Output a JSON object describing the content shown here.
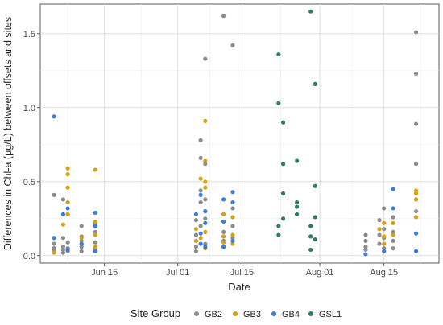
{
  "chart_data": {
    "type": "scatter",
    "title": "",
    "xlabel": "Date",
    "ylabel": "Differences in Chl-a (μg/L) between offsets and sites",
    "x_axis": {
      "type": "date",
      "range": [
        "2019-06-01",
        "2019-08-27"
      ],
      "ticks": [
        {
          "value": "2019-06-15",
          "label": "Jun 15"
        },
        {
          "value": "2019-07-01",
          "label": "Jul 01"
        },
        {
          "value": "2019-07-15",
          "label": "Jul 15"
        },
        {
          "value": "2019-08-01",
          "label": "Aug 01"
        },
        {
          "value": "2019-08-15",
          "label": "Aug 15"
        }
      ]
    },
    "y_axis": {
      "range": [
        -0.05,
        1.7
      ],
      "ticks": [
        {
          "value": 0.0,
          "label": "0.0"
        },
        {
          "value": 0.5,
          "label": "0.5"
        },
        {
          "value": 1.0,
          "label": "1.0"
        },
        {
          "value": 1.5,
          "label": "1.5"
        }
      ]
    },
    "grid": true,
    "legend": {
      "title": "Site Group",
      "position": "bottom"
    },
    "series": [
      {
        "name": "GB2",
        "color": "#8c8c8c",
        "points": [
          [
            "2019-06-04",
            0.41
          ],
          [
            "2019-06-04",
            0.08
          ],
          [
            "2019-06-04",
            0.05
          ],
          [
            "2019-06-04",
            0.03
          ],
          [
            "2019-06-06",
            0.38
          ],
          [
            "2019-06-06",
            0.12
          ],
          [
            "2019-06-06",
            0.06
          ],
          [
            "2019-06-06",
            0.04
          ],
          [
            "2019-06-06",
            0.02
          ],
          [
            "2019-06-07",
            0.09
          ],
          [
            "2019-06-07",
            0.05
          ],
          [
            "2019-06-07",
            0.03
          ],
          [
            "2019-06-10",
            0.2
          ],
          [
            "2019-06-10",
            0.13
          ],
          [
            "2019-06-10",
            0.1
          ],
          [
            "2019-06-10",
            0.06
          ],
          [
            "2019-06-10",
            0.03
          ],
          [
            "2019-06-13",
            0.22
          ],
          [
            "2019-06-13",
            0.16
          ],
          [
            "2019-06-13",
            0.09
          ],
          [
            "2019-06-13",
            0.05
          ],
          [
            "2019-07-05",
            0.24
          ],
          [
            "2019-07-05",
            0.14
          ],
          [
            "2019-07-05",
            0.06
          ],
          [
            "2019-07-05",
            0.03
          ],
          [
            "2019-07-06",
            0.78
          ],
          [
            "2019-07-06",
            0.66
          ],
          [
            "2019-07-06",
            0.44
          ],
          [
            "2019-07-06",
            0.36
          ],
          [
            "2019-07-06",
            0.2
          ],
          [
            "2019-07-07",
            1.33
          ],
          [
            "2019-07-07",
            0.62
          ],
          [
            "2019-07-07",
            0.38
          ],
          [
            "2019-07-07",
            0.25
          ],
          [
            "2019-07-07",
            0.08
          ],
          [
            "2019-07-11",
            1.62
          ],
          [
            "2019-07-11",
            0.16
          ],
          [
            "2019-07-11",
            0.1
          ],
          [
            "2019-07-11",
            0.06
          ],
          [
            "2019-07-13",
            1.42
          ],
          [
            "2019-07-13",
            0.32
          ],
          [
            "2019-07-13",
            0.2
          ],
          [
            "2019-07-13",
            0.12
          ],
          [
            "2019-08-11",
            0.14
          ],
          [
            "2019-08-11",
            0.1
          ],
          [
            "2019-08-11",
            0.06
          ],
          [
            "2019-08-11",
            0.04
          ],
          [
            "2019-08-14",
            0.24
          ],
          [
            "2019-08-14",
            0.14
          ],
          [
            "2019-08-14",
            0.08
          ],
          [
            "2019-08-15",
            0.32
          ],
          [
            "2019-08-15",
            0.18
          ],
          [
            "2019-08-15",
            0.12
          ],
          [
            "2019-08-15",
            0.05
          ],
          [
            "2019-08-17",
            0.26
          ],
          [
            "2019-08-17",
            0.16
          ],
          [
            "2019-08-17",
            0.1
          ],
          [
            "2019-08-17",
            0.05
          ],
          [
            "2019-08-22",
            1.51
          ],
          [
            "2019-08-22",
            1.23
          ],
          [
            "2019-08-22",
            0.89
          ],
          [
            "2019-08-22",
            0.62
          ],
          [
            "2019-08-22",
            0.3
          ]
        ]
      },
      {
        "name": "GB3",
        "color": "#d4a017",
        "points": [
          [
            "2019-06-04",
            0.02
          ],
          [
            "2019-06-06",
            0.21
          ],
          [
            "2019-06-07",
            0.59
          ],
          [
            "2019-06-07",
            0.55
          ],
          [
            "2019-06-07",
            0.46
          ],
          [
            "2019-06-07",
            0.36
          ],
          [
            "2019-06-07",
            0.28
          ],
          [
            "2019-06-10",
            0.12
          ],
          [
            "2019-06-10",
            0.08
          ],
          [
            "2019-06-13",
            0.58
          ],
          [
            "2019-06-13",
            0.23
          ],
          [
            "2019-06-13",
            0.14
          ],
          [
            "2019-06-13",
            0.06
          ],
          [
            "2019-07-05",
            0.18
          ],
          [
            "2019-07-05",
            0.1
          ],
          [
            "2019-07-06",
            0.52
          ],
          [
            "2019-07-06",
            0.12
          ],
          [
            "2019-07-07",
            0.91
          ],
          [
            "2019-07-07",
            0.64
          ],
          [
            "2019-07-07",
            0.5
          ],
          [
            "2019-07-07",
            0.46
          ],
          [
            "2019-07-07",
            0.3
          ],
          [
            "2019-07-07",
            0.16
          ],
          [
            "2019-07-07",
            0.05
          ],
          [
            "2019-07-11",
            0.28
          ],
          [
            "2019-07-11",
            0.13
          ],
          [
            "2019-07-11",
            0.09
          ],
          [
            "2019-07-13",
            0.26
          ],
          [
            "2019-07-13",
            0.14
          ],
          [
            "2019-07-13",
            0.08
          ],
          [
            "2019-08-14",
            0.18
          ],
          [
            "2019-08-15",
            0.22
          ],
          [
            "2019-08-15",
            0.13
          ],
          [
            "2019-08-15",
            0.08
          ],
          [
            "2019-08-17",
            0.22
          ],
          [
            "2019-08-17",
            0.14
          ],
          [
            "2019-08-22",
            0.44
          ],
          [
            "2019-08-22",
            0.42
          ],
          [
            "2019-08-22",
            0.38
          ],
          [
            "2019-08-22",
            0.26
          ]
        ]
      },
      {
        "name": "GB4",
        "color": "#3b7ddd",
        "points": [
          [
            "2019-06-04",
            0.94
          ],
          [
            "2019-06-04",
            0.12
          ],
          [
            "2019-06-06",
            0.28
          ],
          [
            "2019-06-07",
            0.32
          ],
          [
            "2019-06-07",
            0.04
          ],
          [
            "2019-06-10",
            0.08
          ],
          [
            "2019-06-13",
            0.29
          ],
          [
            "2019-06-13",
            0.2
          ],
          [
            "2019-06-13",
            0.03
          ],
          [
            "2019-07-05",
            0.28
          ],
          [
            "2019-07-06",
            0.41
          ],
          [
            "2019-07-06",
            0.15
          ],
          [
            "2019-07-06",
            0.08
          ],
          [
            "2019-07-07",
            0.3
          ],
          [
            "2019-07-07",
            0.22
          ],
          [
            "2019-07-07",
            0.06
          ],
          [
            "2019-07-11",
            0.38
          ],
          [
            "2019-07-11",
            0.23
          ],
          [
            "2019-07-11",
            0.06
          ],
          [
            "2019-07-13",
            0.43
          ],
          [
            "2019-07-13",
            0.36
          ],
          [
            "2019-07-13",
            0.1
          ],
          [
            "2019-08-11",
            0.01
          ],
          [
            "2019-08-15",
            0.03
          ],
          [
            "2019-08-17",
            0.45
          ],
          [
            "2019-08-17",
            0.32
          ],
          [
            "2019-08-22",
            0.15
          ],
          [
            "2019-08-22",
            0.03
          ]
        ]
      },
      {
        "name": "GSL1",
        "color": "#2e7d5b",
        "points": [
          [
            "2019-07-23",
            1.36
          ],
          [
            "2019-07-23",
            1.03
          ],
          [
            "2019-07-23",
            0.2
          ],
          [
            "2019-07-23",
            0.14
          ],
          [
            "2019-07-24",
            0.9
          ],
          [
            "2019-07-24",
            0.62
          ],
          [
            "2019-07-24",
            0.42
          ],
          [
            "2019-07-24",
            0.25
          ],
          [
            "2019-07-27",
            0.64
          ],
          [
            "2019-07-27",
            0.36
          ],
          [
            "2019-07-27",
            0.33
          ],
          [
            "2019-07-27",
            0.28
          ],
          [
            "2019-07-30",
            1.65
          ],
          [
            "2019-07-30",
            0.2
          ],
          [
            "2019-07-30",
            0.13
          ],
          [
            "2019-07-30",
            0.04
          ],
          [
            "2019-07-31",
            1.16
          ],
          [
            "2019-07-31",
            0.47
          ],
          [
            "2019-07-31",
            0.26
          ],
          [
            "2019-07-31",
            0.11
          ]
        ]
      }
    ]
  }
}
